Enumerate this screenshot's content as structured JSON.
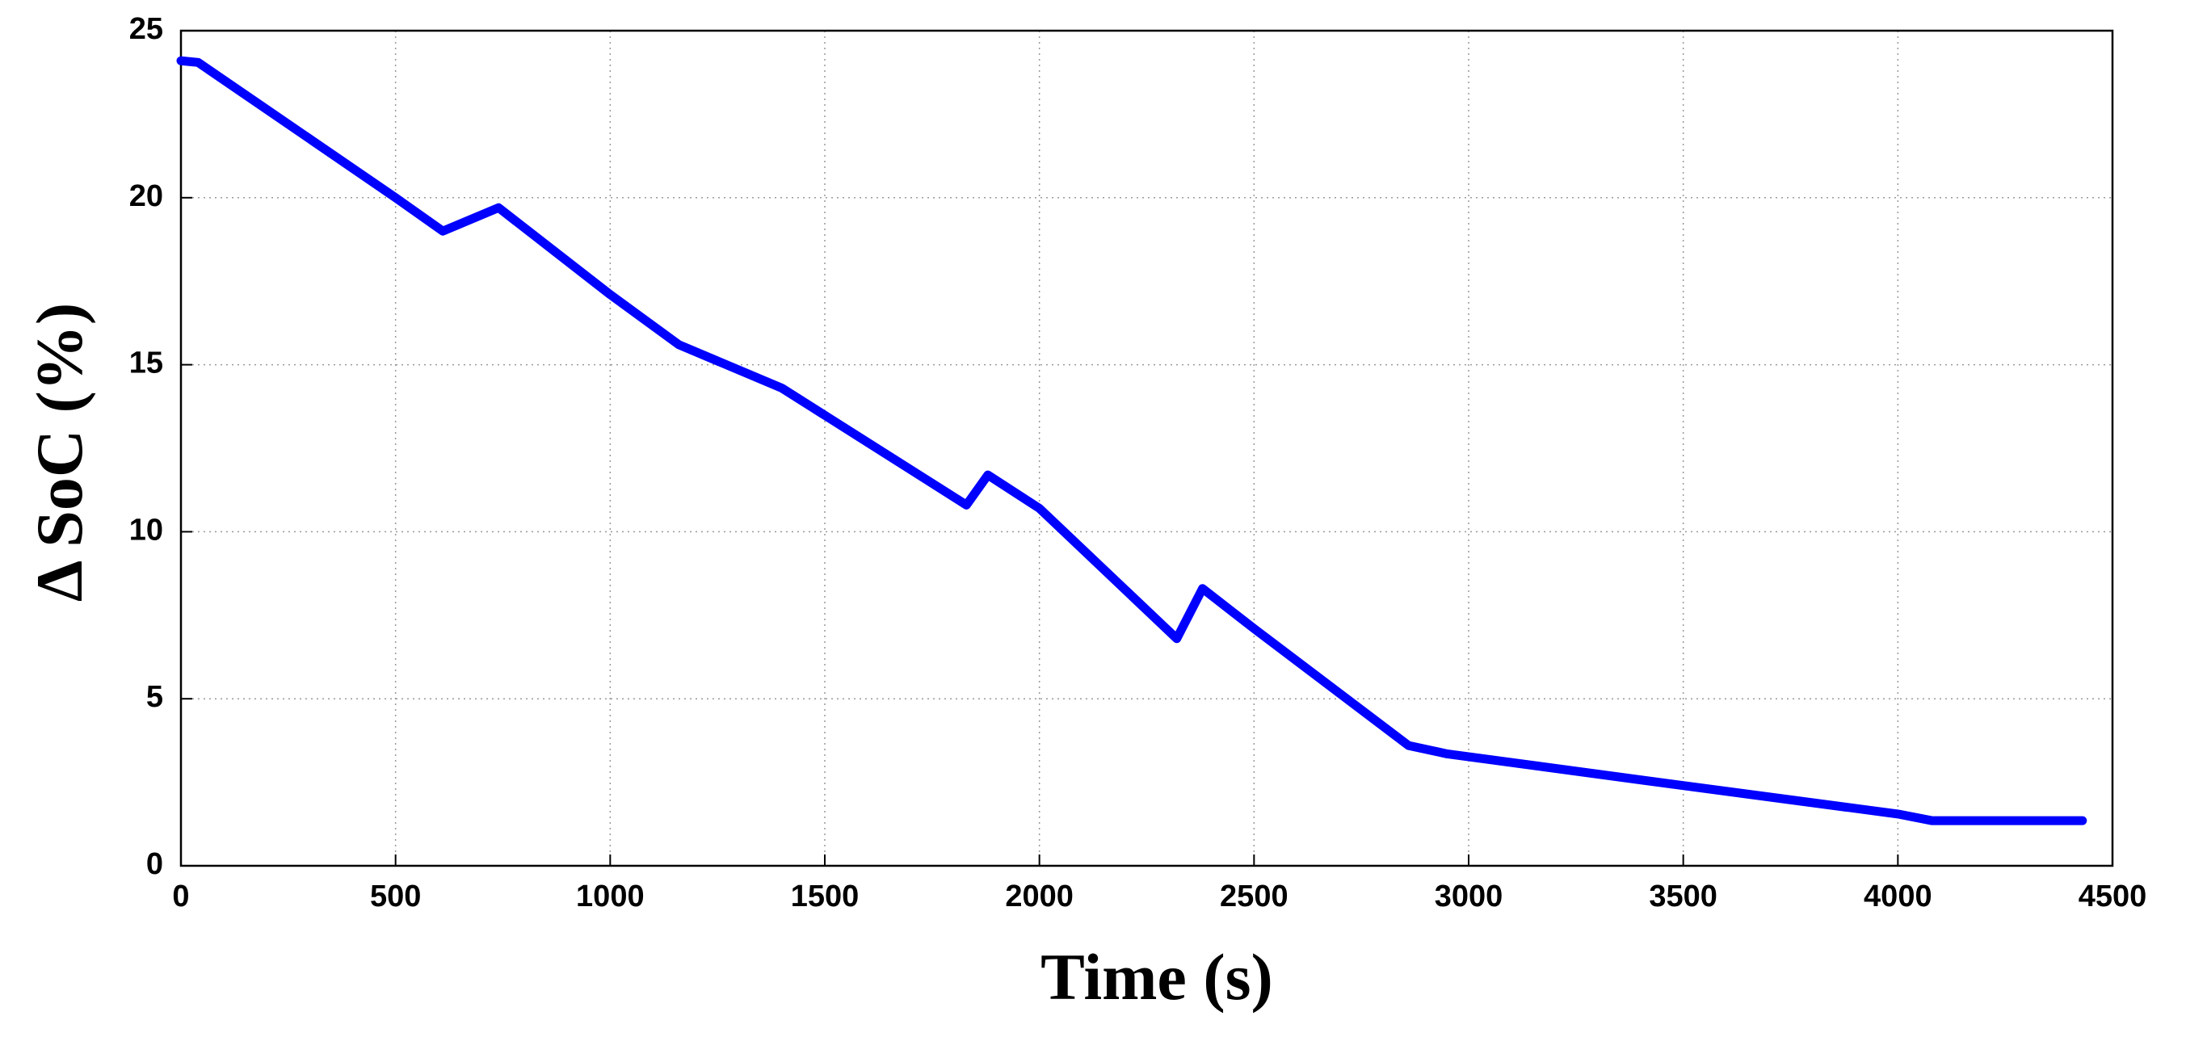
{
  "chart_data": {
    "type": "line",
    "xlabel": "Time (s)",
    "ylabel": "Δ SoC (%)",
    "series": [
      {
        "name": "Δ SoC",
        "color": "#0000ff",
        "x": [
          0,
          40,
          500,
          610,
          740,
          1000,
          1160,
          1400,
          1830,
          1880,
          2000,
          2320,
          2380,
          2500,
          2860,
          2950,
          3500,
          4000,
          4080,
          4430
        ],
        "values": [
          24.1,
          24.05,
          20,
          19,
          19.7,
          17.1,
          15.6,
          14.3,
          10.8,
          11.7,
          10.7,
          6.8,
          8.3,
          7.1,
          3.6,
          3.35,
          2.4,
          1.55,
          1.35,
          1.35
        ]
      }
    ],
    "xlim": [
      0,
      4500
    ],
    "xticks": [
      0,
      500,
      1000,
      1500,
      2000,
      2500,
      3000,
      3500,
      4000,
      4500
    ],
    "ylim": [
      0,
      25
    ],
    "yticks": [
      0,
      5,
      10,
      15,
      20,
      25
    ],
    "grid": true
  }
}
